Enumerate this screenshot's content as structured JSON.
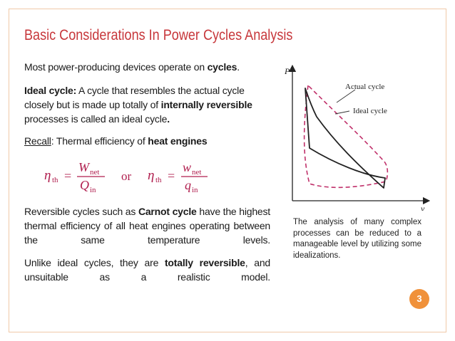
{
  "slide": {
    "title": "Basic Considerations In Power Cycles Analysis",
    "intro": {
      "text_before": "Most power-producing devices operate on ",
      "bold": "cycles",
      "text_after": "."
    },
    "ideal_cycle": {
      "term": "Ideal cycle:",
      "text_1": " A cycle that resembles the actual cycle closely but is made up totally of ",
      "bold": "internally reversible",
      "text_2": " processes is called an ideal cycle",
      "end": "."
    },
    "recall": {
      "label": "Recall",
      "text": ": Thermal efficiency of ",
      "bold": "heat engines"
    },
    "formula": {
      "lhs1_main": "η",
      "lhs1_sub": "th",
      "num1_main": "W",
      "num1_sub": "net",
      "den1_main": "Q",
      "den1_sub": "in",
      "connector": "or",
      "lhs2_main": "η",
      "lhs2_sub": "th",
      "num2_main": "w",
      "num2_sub": "net",
      "den2_main": "q",
      "den2_sub": "in",
      "equals": "="
    },
    "reversible": {
      "text_1": "Reversible cycles such as ",
      "bold": "Carnot cycle",
      "text_2": " have the highest thermal efficiency of all heat engines operating between the same temperature levels."
    },
    "unlike": {
      "text_1": "Unlike ideal cycles, they are ",
      "bold": "totally reversible",
      "text_2": ", and unsuitable as a realistic model."
    },
    "diagram": {
      "y_axis_label": "P",
      "x_axis_label": "v",
      "actual_label": "Actual cycle",
      "ideal_label": "Ideal cycle"
    },
    "caption": "The analysis of many complex processes can be reduced to a manageable level by utilizing some idealizations.",
    "page_number": "3"
  },
  "colors": {
    "title": "#c7373b",
    "ideal_curve": "#c0306a",
    "badge": "#f0913a",
    "frame": "#f0c9a8"
  }
}
